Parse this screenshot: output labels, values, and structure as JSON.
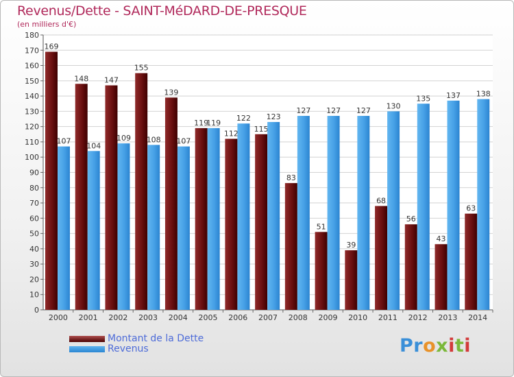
{
  "chart_data": {
    "type": "bar",
    "title": "Revenus/Dette - SAINT-MéDARD-DE-PRESQUE",
    "subtitle": "(en milliers d'€)",
    "categories": [
      "2000",
      "2001",
      "2002",
      "2003",
      "2004",
      "2005",
      "2006",
      "2007",
      "2008",
      "2009",
      "2010",
      "2011",
      "2012",
      "2013",
      "2014"
    ],
    "series": [
      {
        "name": "Montant de la Dette",
        "color": "#7a1a1a",
        "values": [
          169,
          148,
          147,
          155,
          139,
          119,
          112,
          115,
          83,
          51,
          39,
          68,
          56,
          43,
          63
        ]
      },
      {
        "name": "Revenus",
        "color": "#4aa3e8",
        "values": [
          107,
          104,
          109,
          108,
          107,
          119,
          122,
          123,
          127,
          127,
          127,
          130,
          135,
          137,
          138
        ]
      }
    ],
    "ylim": [
      0,
      180
    ],
    "ytick_step": 10,
    "grid": true,
    "legend": "bottom-left"
  },
  "logo": {
    "text": "Proxiti"
  }
}
